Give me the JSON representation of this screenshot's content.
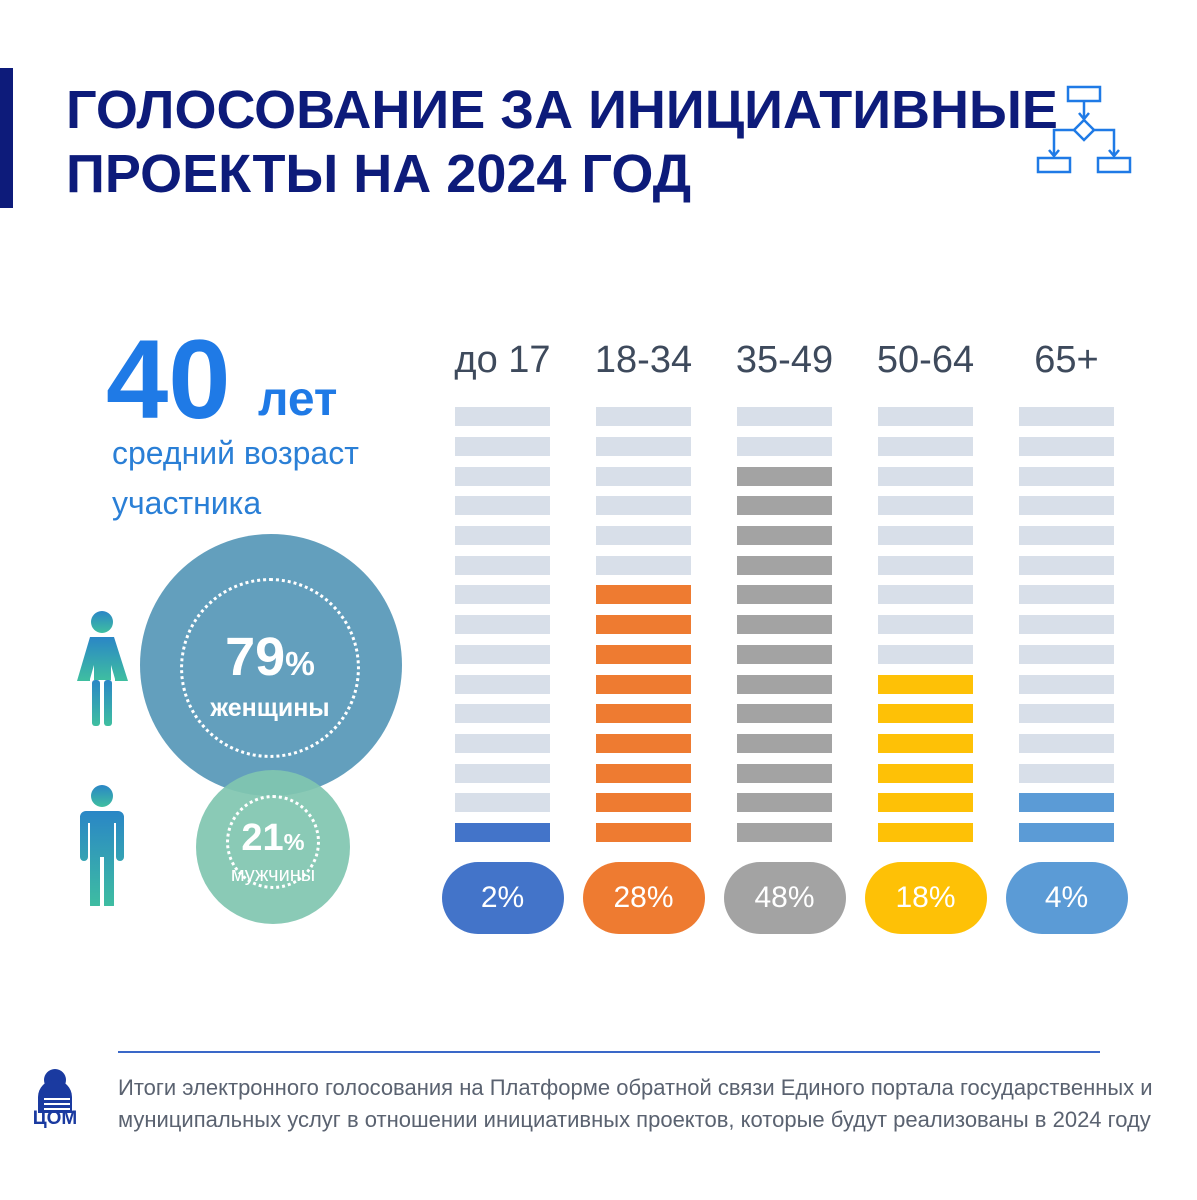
{
  "header": {
    "title_line1": "ГОЛОСОВАНИЕ ЗА ИНИЦИАТИВНЫЕ",
    "title_line2": "ПРОЕКТЫ НА 2024 ГОД",
    "icon": "flowchart-icon"
  },
  "average_age": {
    "value": "40",
    "unit": "лет",
    "caption_line1": "средний возраст",
    "caption_line2": "участника"
  },
  "gender": {
    "women": {
      "percent": "79",
      "symbol": "%",
      "label": "женщины",
      "icon": "woman-icon"
    },
    "men": {
      "percent": "21",
      "symbol": "%",
      "label": "мужчины",
      "icon": "man-icon"
    }
  },
  "chart_data": {
    "type": "bar",
    "categories": [
      "до 17",
      "18-34",
      "35-49",
      "50-64",
      "65+"
    ],
    "values": [
      2,
      28,
      48,
      18,
      4
    ],
    "value_labels": [
      "2%",
      "28%",
      "48%",
      "18%",
      "4%"
    ],
    "filled_segments": [
      1,
      9,
      13,
      6,
      2
    ],
    "total_segments": 15,
    "colors": [
      "#4374c9",
      "#ee7b31",
      "#a3a3a3",
      "#fec106",
      "#5b9bd6"
    ],
    "empty_color": "#d8dfe9"
  },
  "footer": {
    "note_line1": "Итоги электронного голосования на Платформе обратной связи Единого портала государственных и",
    "note_line2": "муниципальных услуг в отношении инициативных проектов, которые будут реализованы в 2024 году",
    "logo_text": "ЦОМ"
  }
}
